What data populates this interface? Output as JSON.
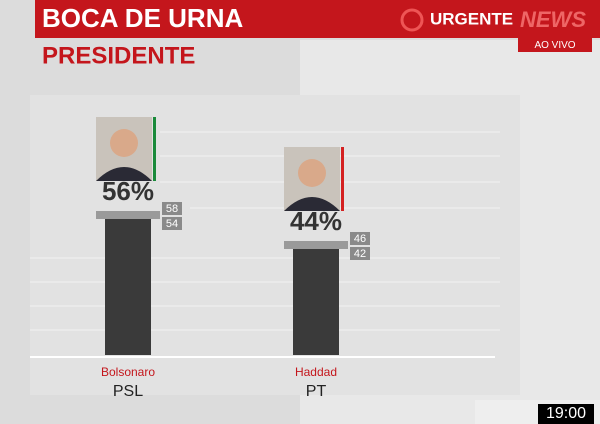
{
  "header": {
    "title": "BOCA DE URNA",
    "subtitle": "PRESIDENTE",
    "alert": "URGENTE",
    "channel": "NEWS",
    "live": "AO VIVO",
    "time": "19:00"
  },
  "chart_data": {
    "type": "bar",
    "categories": [
      "Bolsonaro",
      "Haddad"
    ],
    "parties": [
      "PSL",
      "PT"
    ],
    "values": [
      56,
      44
    ],
    "value_labels": [
      "56%",
      "44%"
    ],
    "upper": [
      58,
      46
    ],
    "lower": [
      54,
      42
    ],
    "party_colors": [
      "#1a8a3a",
      "#d42020"
    ],
    "color": "#3a3a3a",
    "ylim": [
      0,
      60
    ]
  }
}
